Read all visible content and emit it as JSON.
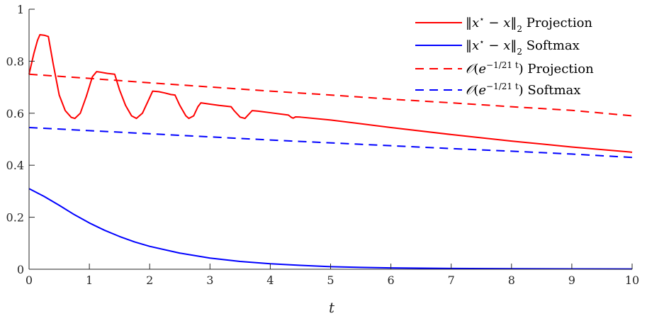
{
  "chart_data": {
    "type": "line",
    "title": "",
    "xlabel": "t",
    "ylabel": "",
    "xlim": [
      0,
      10
    ],
    "ylim": [
      0,
      1
    ],
    "xticks": [
      0,
      1,
      2,
      3,
      4,
      5,
      6,
      7,
      8,
      9,
      10
    ],
    "yticks": [
      0,
      0.2,
      0.4,
      0.6,
      0.8,
      1
    ],
    "xtick_labels": [
      "0",
      "1",
      "2",
      "3",
      "4",
      "5",
      "6",
      "7",
      "8",
      "9",
      "10"
    ],
    "ytick_labels": [
      "0",
      "0.2",
      "0.4",
      "0.6",
      "0.8",
      "1"
    ],
    "grid": false,
    "legend_position": "top-right",
    "colors": {
      "projection": "#ff0000",
      "softmax": "#0000ff",
      "axis": "#262626"
    },
    "series": [
      {
        "name": "‖x* − x‖₂ Projection",
        "color": "#ff0000",
        "style": "solid",
        "x": [
          0,
          0.08,
          0.14,
          0.18,
          0.25,
          0.32,
          0.4,
          0.5,
          0.6,
          0.7,
          0.76,
          0.85,
          0.95,
          1.05,
          1.12,
          1.18,
          1.3,
          1.42,
          1.5,
          1.6,
          1.7,
          1.78,
          1.88,
          2.0,
          2.05,
          2.15,
          2.25,
          2.35,
          2.42,
          2.5,
          2.6,
          2.65,
          2.73,
          2.8,
          2.85,
          3.0,
          3.15,
          3.35,
          3.4,
          3.5,
          3.58,
          3.62,
          3.7,
          3.8,
          4.0,
          4.3,
          4.35,
          4.38,
          4.42,
          4.5,
          5.0,
          6.0,
          7.0,
          8.0,
          9.0,
          10.0
        ],
        "y": [
          0.75,
          0.83,
          0.88,
          0.902,
          0.9,
          0.895,
          0.79,
          0.67,
          0.61,
          0.584,
          0.58,
          0.6,
          0.665,
          0.74,
          0.76,
          0.758,
          0.753,
          0.75,
          0.69,
          0.63,
          0.59,
          0.58,
          0.6,
          0.66,
          0.685,
          0.683,
          0.678,
          0.672,
          0.67,
          0.63,
          0.59,
          0.58,
          0.59,
          0.625,
          0.64,
          0.635,
          0.63,
          0.625,
          0.61,
          0.585,
          0.58,
          0.59,
          0.61,
          0.608,
          0.602,
          0.593,
          0.584,
          0.581,
          0.586,
          0.585,
          0.574,
          0.545,
          0.518,
          0.493,
          0.47,
          0.45
        ]
      },
      {
        "name": "‖x* − x‖₂ Softmax",
        "color": "#0000ff",
        "style": "solid",
        "x": [
          0,
          0.25,
          0.5,
          0.75,
          1,
          1.25,
          1.5,
          1.75,
          2,
          2.5,
          3,
          3.5,
          4,
          4.5,
          5,
          5.5,
          6,
          6.5,
          7,
          8,
          9,
          10
        ],
        "y": [
          0.31,
          0.28,
          0.246,
          0.21,
          0.178,
          0.15,
          0.126,
          0.105,
          0.088,
          0.062,
          0.043,
          0.03,
          0.021,
          0.015,
          0.01,
          0.007,
          0.005,
          0.004,
          0.003,
          0.002,
          0.0015,
          0.001
        ]
      },
      {
        "name": "O(e^(−t/21)) Projection",
        "color": "#ff0000",
        "style": "dashed",
        "x": [
          0,
          1,
          2,
          3,
          4,
          5,
          6,
          7,
          8,
          9,
          10
        ],
        "y": [
          0.75,
          0.734,
          0.717,
          0.701,
          0.685,
          0.67,
          0.654,
          0.64,
          0.625,
          0.611,
          0.59
        ]
      },
      {
        "name": "O(e^(−t/21)) Softmax",
        "color": "#0000ff",
        "style": "dashed",
        "x": [
          0,
          1,
          2,
          3,
          4,
          5,
          6,
          7,
          8,
          9,
          10
        ],
        "y": [
          0.545,
          0.533,
          0.521,
          0.509,
          0.497,
          0.486,
          0.475,
          0.464,
          0.454,
          0.443,
          0.43
        ]
      }
    ]
  }
}
